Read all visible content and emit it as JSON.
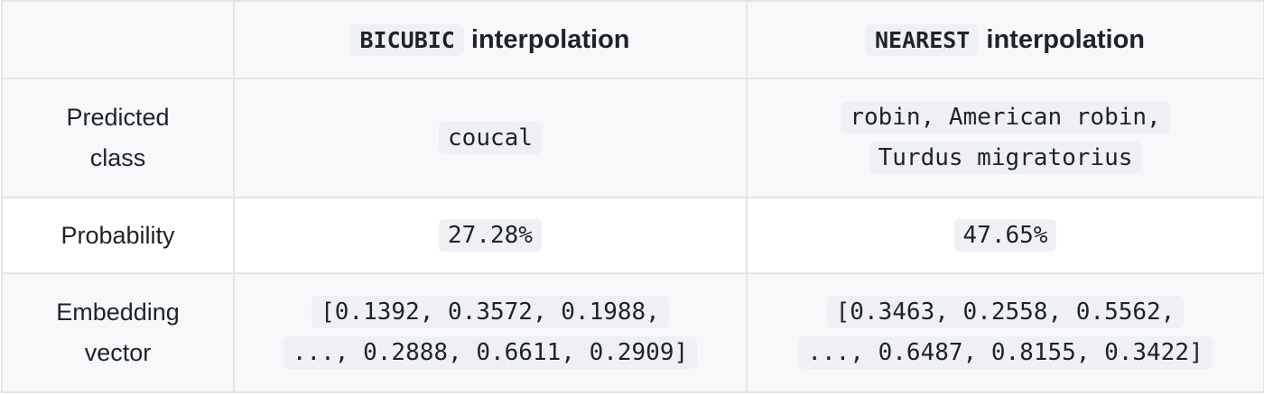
{
  "columns": {
    "bicubic": {
      "code": "BICUBIC",
      "suffix": " interpolation"
    },
    "nearest": {
      "code": "NEAREST",
      "suffix": " interpolation"
    }
  },
  "rows": {
    "predicted_class": {
      "label_lines": [
        "Predicted",
        "class"
      ],
      "bicubic_lines": [
        "coucal"
      ],
      "nearest_lines": [
        "robin, American robin,",
        "Turdus migratorius"
      ]
    },
    "probability": {
      "label_lines": [
        "Probability"
      ],
      "bicubic_lines": [
        "27.28%"
      ],
      "nearest_lines": [
        "47.65%"
      ]
    },
    "embedding_vector": {
      "label_lines": [
        "Embedding",
        "vector"
      ],
      "bicubic_lines": [
        "[0.1392, 0.3572, 0.1988,",
        "..., 0.2888, 0.6611, 0.2909]"
      ],
      "nearest_lines": [
        "[0.3463, 0.2558, 0.5562,",
        "..., 0.6487, 0.8155, 0.3422]"
      ]
    }
  }
}
